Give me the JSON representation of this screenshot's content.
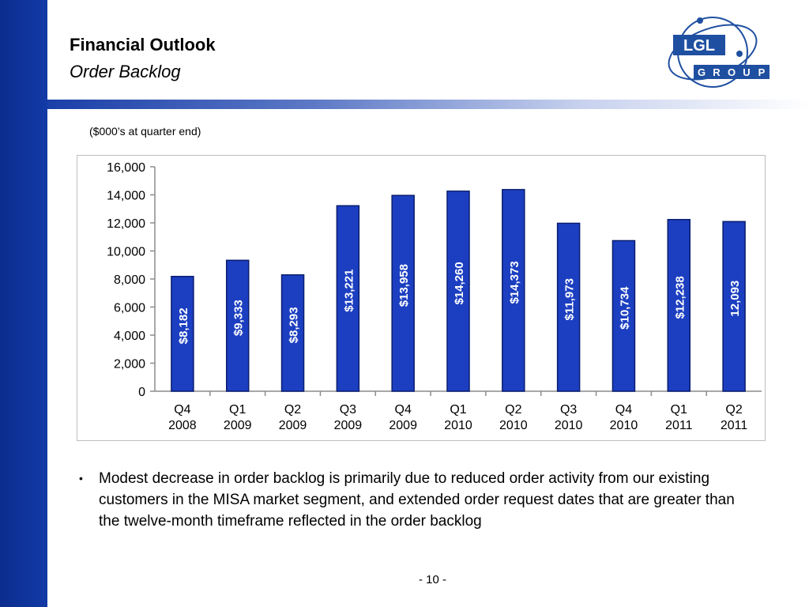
{
  "slide": {
    "title": "Financial Outlook",
    "subtitle": "Order Backlog",
    "units_note": "($000’s at quarter end)",
    "bullet_text": "Modest decrease in order backlog is primarily due to reduced order activity from our existing customers in the MISA market segment, and extended order request dates that are greater than the twelve-month timeframe reflected in the order backlog",
    "bullet_marker": "•",
    "page_number": "- 10 -"
  },
  "logo": {
    "top_text": "LGL",
    "bottom_letters": [
      "G",
      "R",
      "O",
      "U",
      "P"
    ]
  },
  "colors": {
    "sidebar": "#0b2d8f",
    "bar_fill": "#1c3fc1",
    "bar_stroke": "#0a1d6e",
    "logo_blue": "#1f4fa0"
  },
  "chart_data": {
    "type": "bar",
    "categories": [
      [
        "Q4",
        "2008"
      ],
      [
        "Q1",
        "2009"
      ],
      [
        "Q2",
        "2009"
      ],
      [
        "Q3",
        "2009"
      ],
      [
        "Q4",
        "2009"
      ],
      [
        "Q1",
        "2010"
      ],
      [
        "Q2",
        "2010"
      ],
      [
        "Q3",
        "2010"
      ],
      [
        "Q4",
        "2010"
      ],
      [
        "Q1",
        "2011"
      ],
      [
        "Q2",
        "2011"
      ]
    ],
    "values": [
      8182,
      9333,
      8293,
      13221,
      13958,
      14260,
      14373,
      11973,
      10734,
      12238,
      12093
    ],
    "data_labels": [
      "$8,182",
      "$9,333",
      "$8,293",
      "$13,221",
      "$13,958",
      "$14,260",
      "$14,373",
      "$11,973",
      "$10,734",
      "$12,238",
      "12,093"
    ],
    "y_ticks": [
      "0",
      "2,000",
      "4,000",
      "6,000",
      "8,000",
      "10,000",
      "12,000",
      "14,000",
      "16,000"
    ],
    "ylim": [
      0,
      16000
    ],
    "grid": false,
    "legend": "none"
  }
}
